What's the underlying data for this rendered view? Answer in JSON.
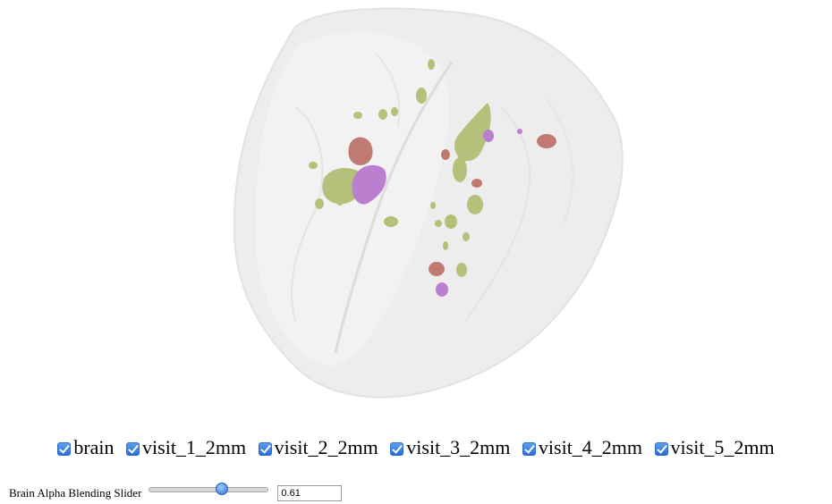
{
  "layers": [
    {
      "id": "brain",
      "label": "brain",
      "checked": true
    },
    {
      "id": "visit_1_2mm",
      "label": "visit_1_2mm",
      "checked": true
    },
    {
      "id": "visit_2_2mm",
      "label": "visit_2_2mm",
      "checked": true
    },
    {
      "id": "visit_3_2mm",
      "label": "visit_3_2mm",
      "checked": true
    },
    {
      "id": "visit_4_2mm",
      "label": "visit_4_2mm",
      "checked": true
    },
    {
      "id": "visit_5_2mm",
      "label": "visit_5_2mm",
      "checked": true
    }
  ],
  "slider": {
    "label": "Brain Alpha Blending Slider",
    "value": "0.61",
    "fraction": 0.61
  },
  "colors": {
    "brain": "#ececec",
    "green_lesion": "#b5c07a",
    "red_lesion": "#c07a72",
    "purple_lesion": "#bb7fd0"
  }
}
